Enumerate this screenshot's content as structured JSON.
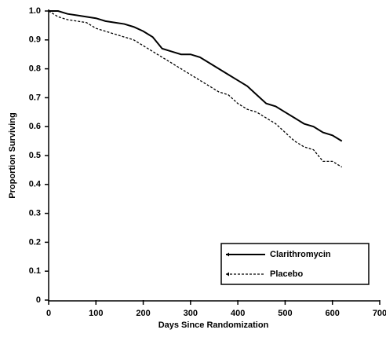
{
  "chart_data": {
    "type": "line",
    "xlabel": "Days Since Randomization",
    "ylabel": "Proportion Surviving",
    "x": [
      0,
      20,
      40,
      60,
      80,
      100,
      120,
      140,
      160,
      180,
      200,
      220,
      240,
      260,
      280,
      300,
      320,
      340,
      360,
      380,
      400,
      420,
      440,
      460,
      480,
      500,
      520,
      540,
      560,
      580,
      600,
      620
    ],
    "series": [
      {
        "name": "Clarithromycin",
        "color": "#000000",
        "line_style": "solid",
        "values": [
          1.0,
          1.0,
          0.99,
          0.985,
          0.98,
          0.975,
          0.965,
          0.96,
          0.955,
          0.945,
          0.93,
          0.91,
          0.87,
          0.86,
          0.85,
          0.85,
          0.84,
          0.82,
          0.8,
          0.78,
          0.76,
          0.74,
          0.71,
          0.68,
          0.67,
          0.65,
          0.63,
          0.61,
          0.6,
          0.58,
          0.57,
          0.55
        ]
      },
      {
        "name": "Placebo",
        "color": "#000000",
        "line_style": "dashed",
        "values": [
          1.0,
          0.98,
          0.97,
          0.965,
          0.96,
          0.94,
          0.93,
          0.92,
          0.91,
          0.9,
          0.88,
          0.86,
          0.84,
          0.82,
          0.8,
          0.78,
          0.76,
          0.74,
          0.72,
          0.71,
          0.68,
          0.66,
          0.65,
          0.63,
          0.61,
          0.58,
          0.55,
          0.53,
          0.52,
          0.48,
          0.48,
          0.46
        ]
      }
    ],
    "xlim": [
      0,
      700
    ],
    "xticks": [
      0,
      100,
      200,
      300,
      400,
      500,
      600,
      700
    ],
    "ylim": [
      0,
      1
    ],
    "yticks": [
      0,
      0.1,
      0.2,
      0.3,
      0.4,
      0.5,
      0.6,
      0.7,
      0.8,
      0.9,
      {
        "value": 1,
        "label": "1.0"
      }
    ],
    "legend": "lower right"
  }
}
